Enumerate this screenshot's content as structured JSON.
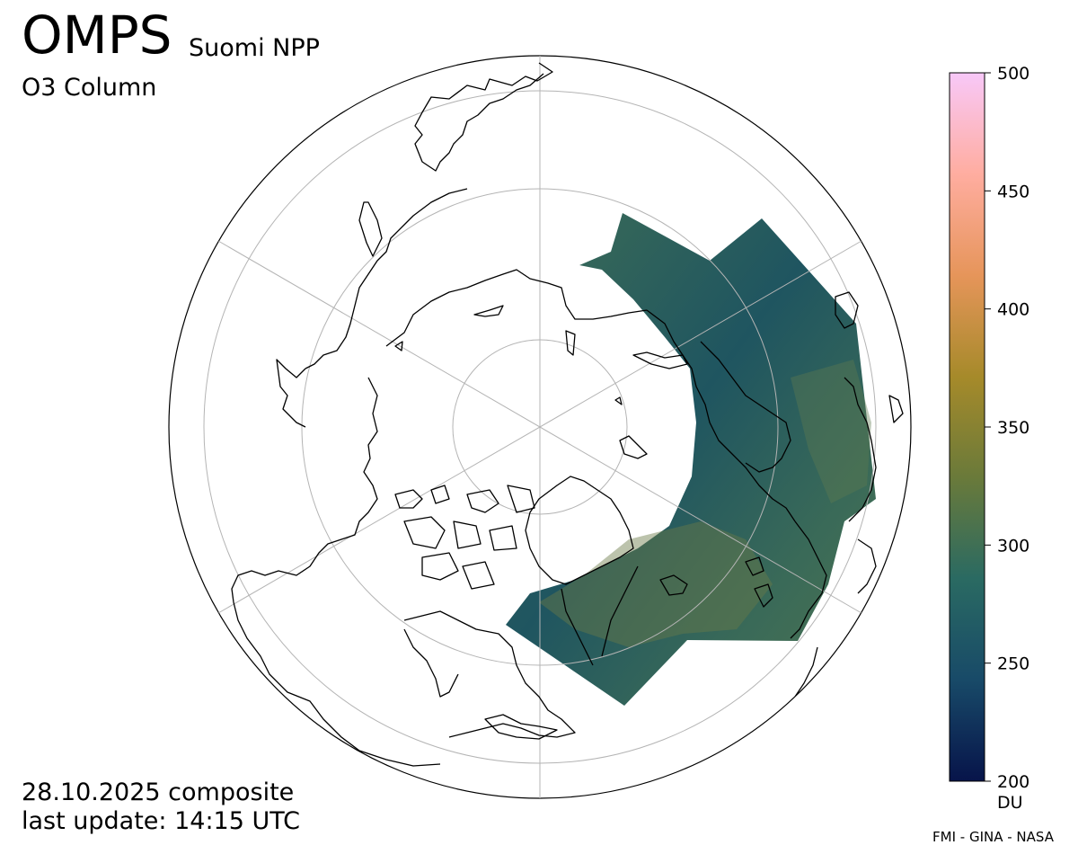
{
  "header": {
    "title": "OMPS",
    "subtitle": "Suomi NPP",
    "product": "O3 Column"
  },
  "footer": {
    "date": "28.10.2025 composite",
    "update": "last update: 14:15 UTC",
    "credit": "FMI - GINA - NASA"
  },
  "colorbar": {
    "min": 200,
    "max": 500,
    "ticks": [
      "200",
      "250",
      "300",
      "350",
      "400",
      "450",
      "500"
    ],
    "unit": "DU",
    "colors": [
      "#07144a",
      "#184a68",
      "#2a6a62",
      "#6a7a3a",
      "#a68a2a",
      "#e6955a",
      "#ffadA0",
      "#f8c8f8"
    ]
  },
  "map": {
    "projection": "north polar stereographic",
    "graticule": true,
    "data_color": "#2e5c50",
    "coast_color": "#000000"
  }
}
